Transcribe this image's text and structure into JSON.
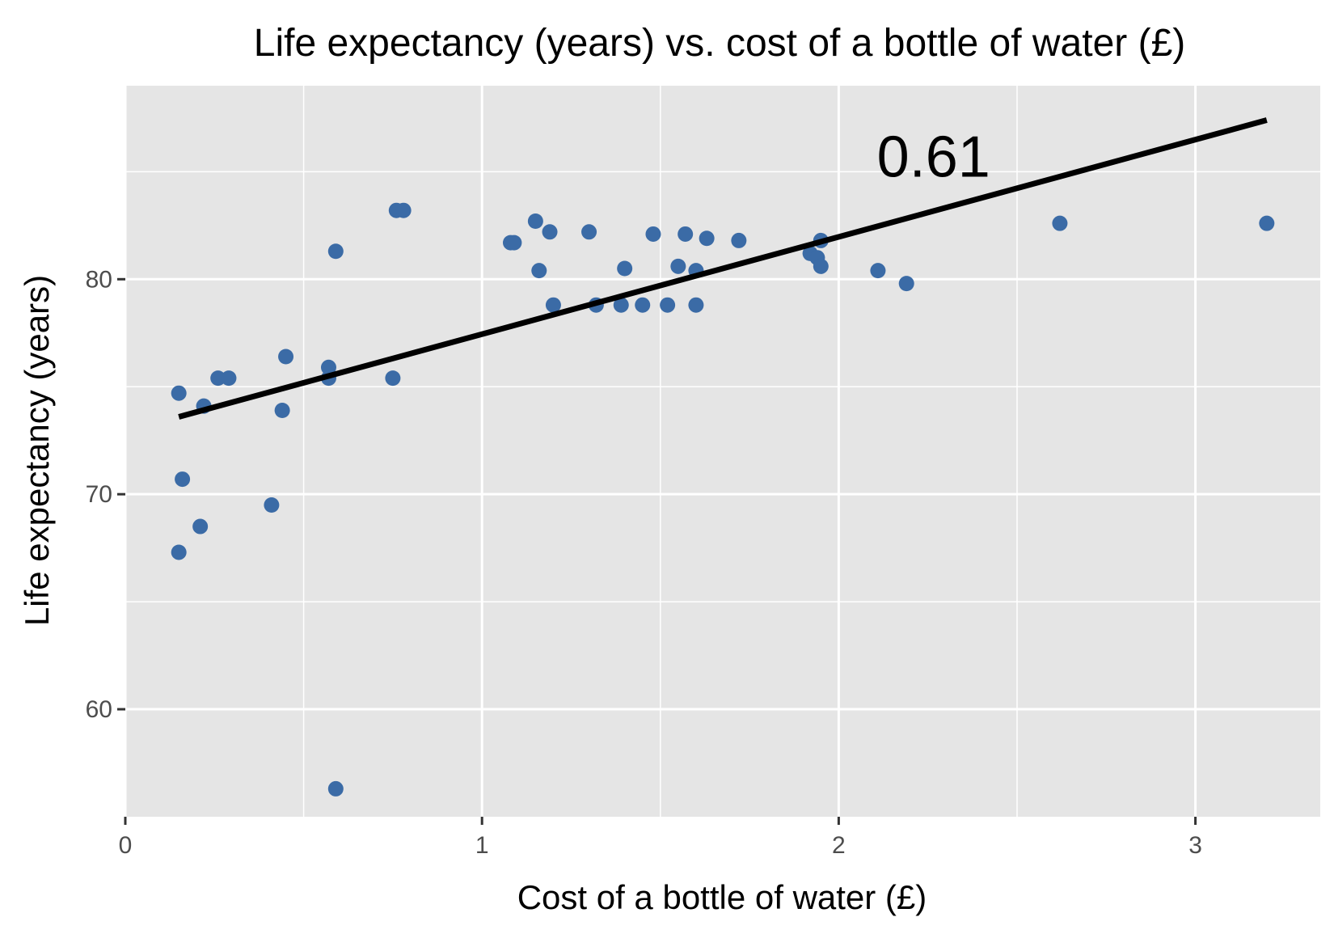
{
  "chart_data": {
    "type": "scatter",
    "title": "Life expectancy (years) vs. cost of a bottle of water (£)",
    "xlabel": "Cost of a bottle of water (£)",
    "ylabel": "Life expectancy (years)",
    "xlim": [
      0,
      3.35
    ],
    "ylim": [
      55,
      89
    ],
    "x_ticks": [
      0,
      1,
      2,
      3
    ],
    "x_tick_labels": [
      "0",
      "1",
      "2",
      "3"
    ],
    "y_ticks": [
      60,
      70,
      80
    ],
    "y_tick_labels": [
      "60",
      "70",
      "80"
    ],
    "x_minor_grid": [
      0.5,
      1.5,
      2.5
    ],
    "y_minor_grid": [
      65,
      75,
      85
    ],
    "grid": true,
    "point_color": "#3b6ba6",
    "line_color": "#000000",
    "panel_color": "#e5e5e5",
    "annotation": {
      "text": "0.61",
      "x": 2.3,
      "y": 85.7
    },
    "trend_line": {
      "x": [
        0.15,
        3.2
      ],
      "y": [
        73.6,
        87.4
      ]
    },
    "points": [
      {
        "x": 0.15,
        "y": 74.7
      },
      {
        "x": 0.16,
        "y": 70.7
      },
      {
        "x": 0.15,
        "y": 67.3
      },
      {
        "x": 0.21,
        "y": 68.5
      },
      {
        "x": 0.22,
        "y": 74.1
      },
      {
        "x": 0.26,
        "y": 75.4
      },
      {
        "x": 0.29,
        "y": 75.4
      },
      {
        "x": 0.41,
        "y": 69.5
      },
      {
        "x": 0.44,
        "y": 73.9
      },
      {
        "x": 0.45,
        "y": 76.4
      },
      {
        "x": 0.57,
        "y": 75.9
      },
      {
        "x": 0.57,
        "y": 75.4
      },
      {
        "x": 0.59,
        "y": 81.3
      },
      {
        "x": 0.59,
        "y": 56.3
      },
      {
        "x": 0.75,
        "y": 75.4
      },
      {
        "x": 0.76,
        "y": 83.2
      },
      {
        "x": 0.78,
        "y": 83.2
      },
      {
        "x": 1.08,
        "y": 81.7
      },
      {
        "x": 1.09,
        "y": 81.7
      },
      {
        "x": 1.15,
        "y": 82.7
      },
      {
        "x": 1.16,
        "y": 80.4
      },
      {
        "x": 1.19,
        "y": 82.2
      },
      {
        "x": 1.2,
        "y": 78.8
      },
      {
        "x": 1.3,
        "y": 82.2
      },
      {
        "x": 1.32,
        "y": 78.8
      },
      {
        "x": 1.39,
        "y": 78.8
      },
      {
        "x": 1.4,
        "y": 80.5
      },
      {
        "x": 1.45,
        "y": 78.8
      },
      {
        "x": 1.48,
        "y": 82.1
      },
      {
        "x": 1.52,
        "y": 78.8
      },
      {
        "x": 1.55,
        "y": 80.6
      },
      {
        "x": 1.57,
        "y": 82.1
      },
      {
        "x": 1.6,
        "y": 80.4
      },
      {
        "x": 1.6,
        "y": 78.8
      },
      {
        "x": 1.63,
        "y": 81.9
      },
      {
        "x": 1.72,
        "y": 81.8
      },
      {
        "x": 1.92,
        "y": 81.2
      },
      {
        "x": 1.94,
        "y": 81.0
      },
      {
        "x": 1.95,
        "y": 81.8
      },
      {
        "x": 1.95,
        "y": 80.6
      },
      {
        "x": 2.11,
        "y": 80.4
      },
      {
        "x": 2.19,
        "y": 79.8
      },
      {
        "x": 2.62,
        "y": 82.6
      },
      {
        "x": 3.2,
        "y": 82.6
      }
    ]
  }
}
